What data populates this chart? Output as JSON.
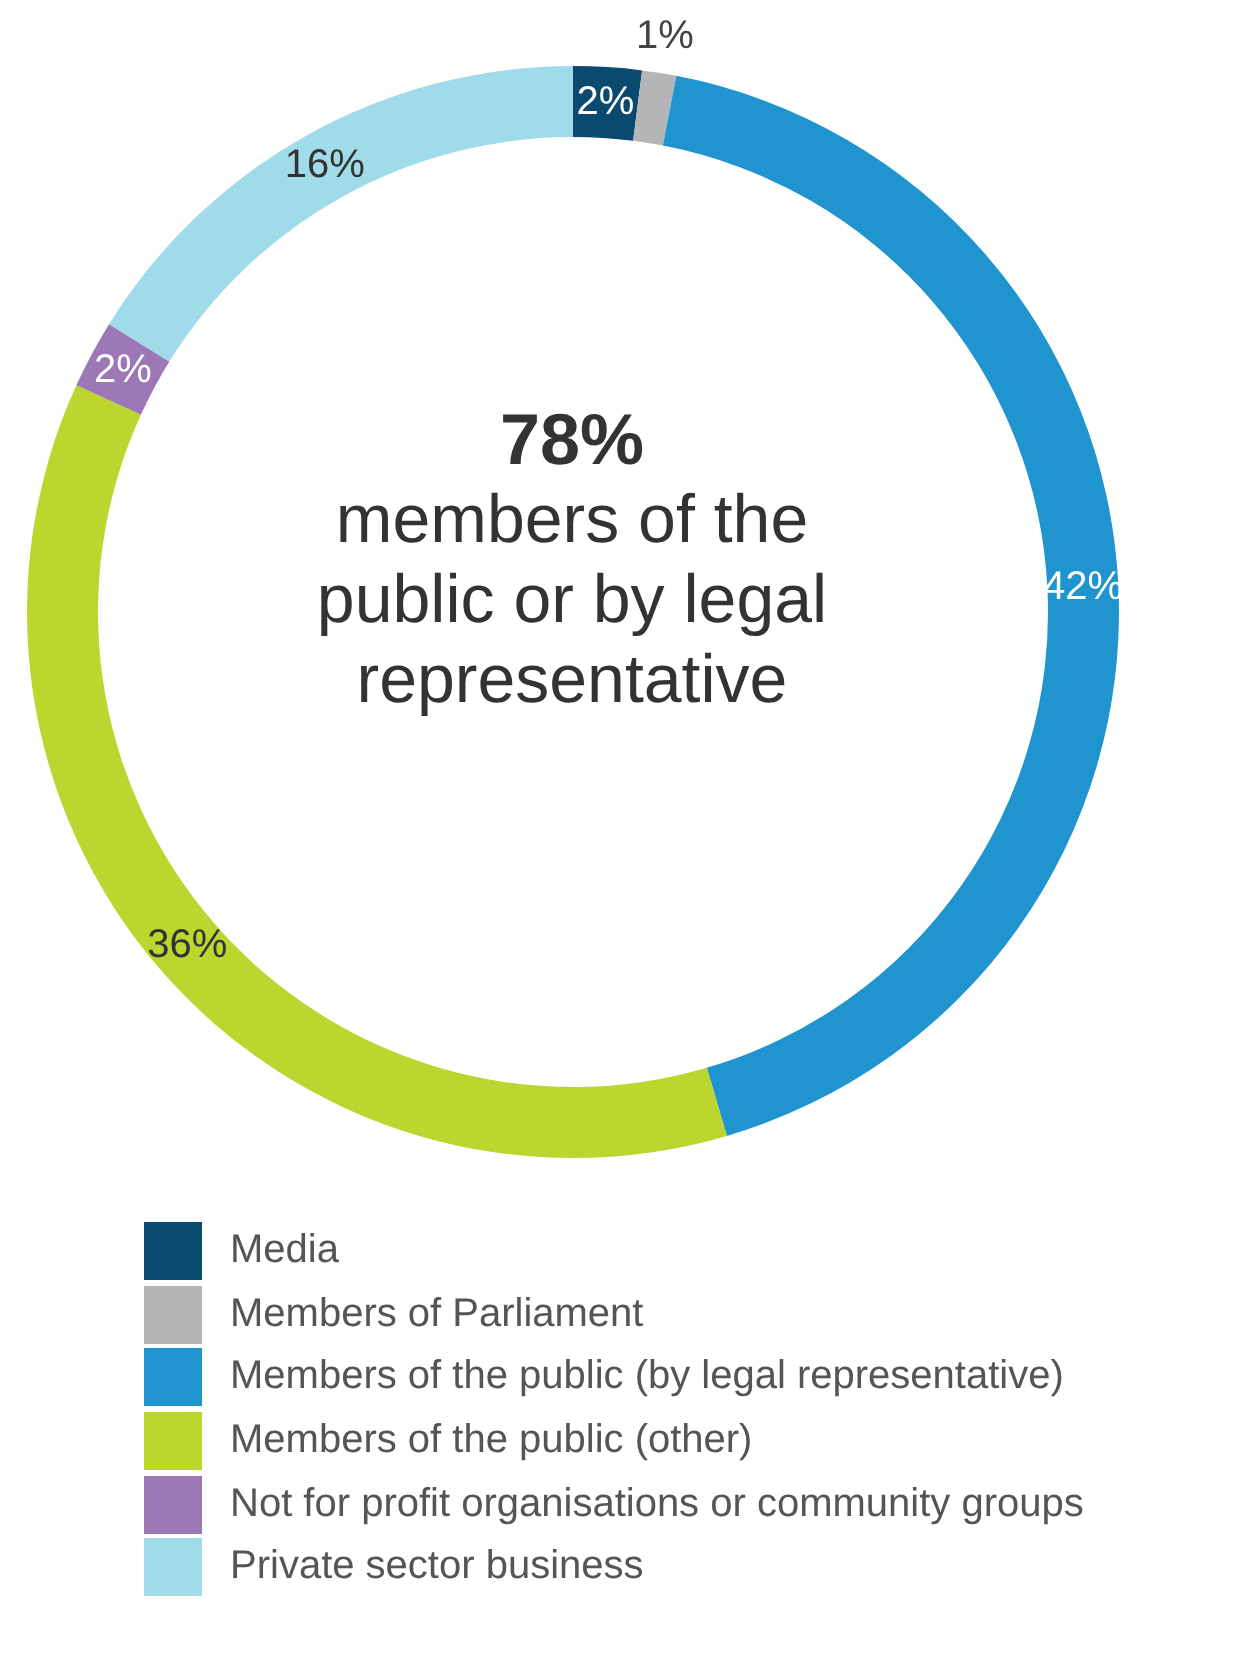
{
  "chart_data": {
    "type": "donut",
    "categories": [
      "Media",
      "Members of Parliament",
      "Members of the public (by legal representative)",
      "Members of the public (other)",
      "Not for profit organisations or community groups",
      "Private sector business"
    ],
    "values": [
      2,
      1,
      42,
      36,
      2,
      16
    ],
    "colors": [
      "#0b4a6f",
      "#b3b5b6",
      "#2094cf",
      "#bdd52f",
      "#9d78b6",
      "#a0dbea"
    ],
    "value_labels": [
      "2%",
      "1%",
      "42%",
      "36%",
      "2%",
      "16%"
    ],
    "legend": "bottom",
    "annotations": [
      "78%",
      "members of the public or by legal representative"
    ]
  }
}
